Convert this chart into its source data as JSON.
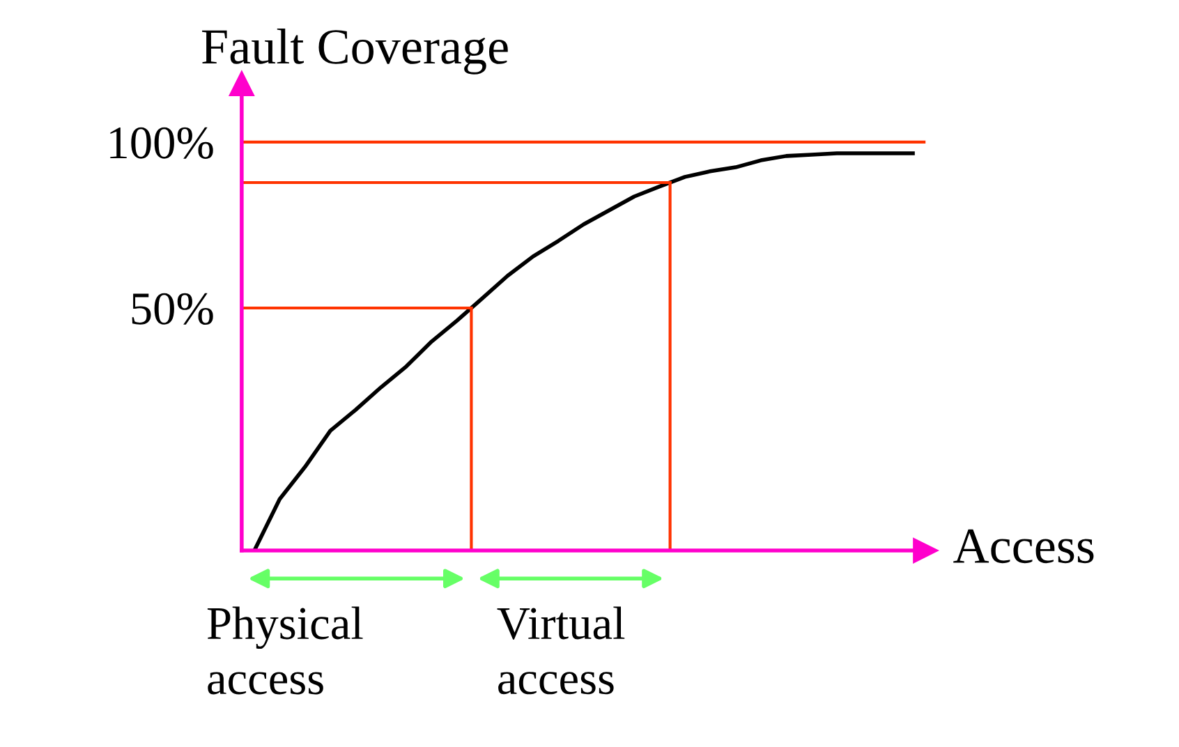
{
  "chart_data": {
    "type": "line",
    "ylabel": "Fault Coverage",
    "xlabel": "Access",
    "categories": [
      null,
      null,
      null,
      null,
      null,
      null,
      null,
      null,
      null,
      null,
      null,
      null,
      null,
      null,
      null,
      null,
      null,
      null,
      null,
      null,
      null,
      null,
      null,
      null,
      null,
      null,
      null
    ],
    "series": [
      {
        "color": "#000000",
        "values": [
          -23.1,
          -7.6,
          2.1,
          13.0,
          19.3,
          26.1,
          32.4,
          39.9,
          46.2,
          52.9,
          59.7,
          65.5,
          70.2,
          75.2,
          79.4,
          83.6,
          86.6,
          89.5,
          91.2,
          92.4,
          94.5,
          95.8,
          96.2,
          96.6,
          96.6,
          96.6,
          96.6
        ]
      }
    ],
    "ylim": [
      -23.1,
      117.6
    ],
    "yticks": [
      {
        "value": 50,
        "label": "50%"
      },
      {
        "value": 100,
        "label": "100%"
      }
    ],
    "tick_labels": "y",
    "grid": false,
    "marker": "none",
    "line_style": "solid",
    "ref_lines": [
      {
        "axis": "y",
        "value": 100,
        "color": "#ff3300"
      },
      {
        "axis": "y",
        "value": 87.8,
        "color": "#ff3300"
      },
      {
        "axis": "y",
        "value": 50,
        "color": "#ff3300"
      }
    ],
    "annotations": [
      "Physical\naccess",
      "Virtual\naccess"
    ]
  }
}
